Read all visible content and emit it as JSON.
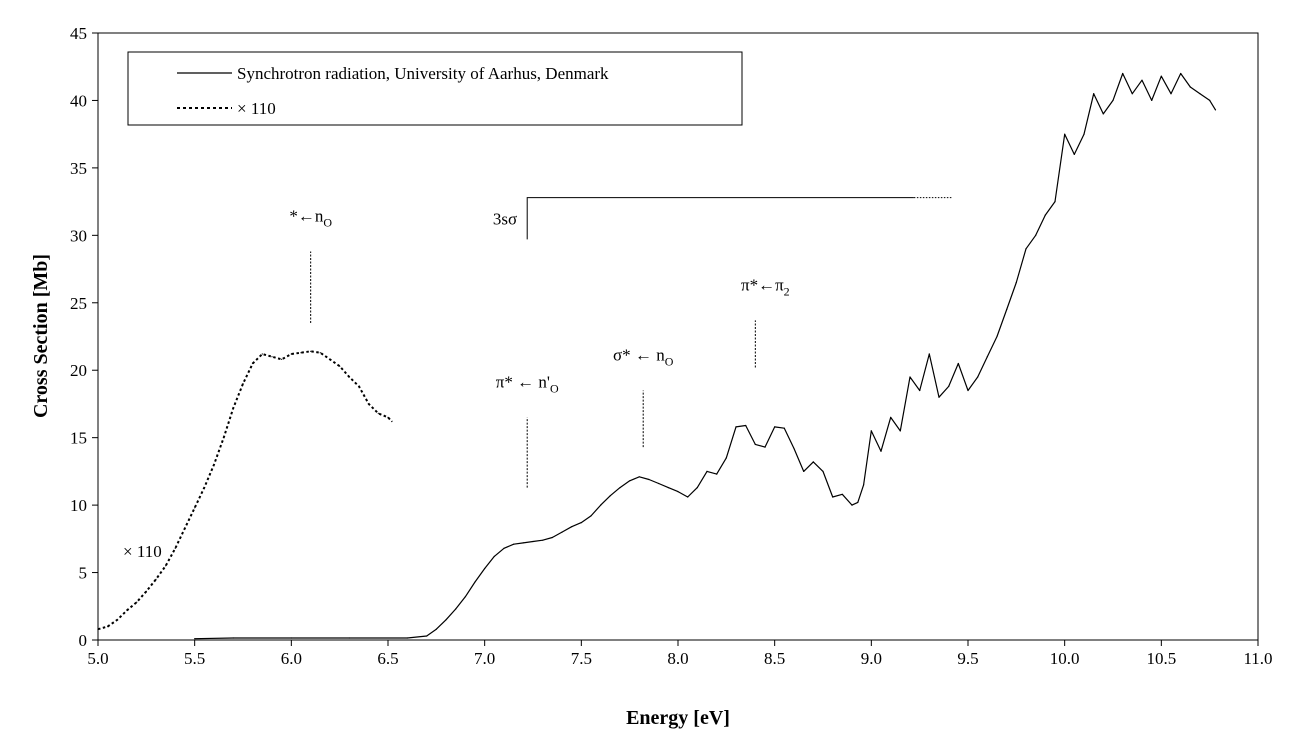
{
  "chart_data": {
    "type": "line",
    "title": "",
    "xlabel": "Energy [eV]",
    "ylabel": "Cross Section [Mb]",
    "xlim": [
      5.0,
      11.0
    ],
    "ylim": [
      0,
      45
    ],
    "x_ticks": [
      5.0,
      5.5,
      6.0,
      6.5,
      7.0,
      7.5,
      8.0,
      8.5,
      9.0,
      9.5,
      10.0,
      10.5,
      11.0
    ],
    "x_tick_labels": [
      "5.0",
      "5.5",
      "6.0",
      "6.5",
      "7.0",
      "7.5",
      "8.0",
      "8.5",
      "9.0",
      "9.5",
      "10.0",
      "10.5",
      "11.0"
    ],
    "y_ticks": [
      0,
      5,
      10,
      15,
      20,
      25,
      30,
      35,
      40,
      45
    ],
    "y_tick_labels": [
      "0",
      "5",
      "10",
      "15",
      "20",
      "25",
      "30",
      "35",
      "40",
      "45"
    ],
    "grid": false,
    "legend": {
      "placement": "top-left",
      "entries": [
        {
          "label": "Synchrotron radiation, University of Aarhus, Denmark",
          "style": "solid"
        },
        {
          "label": "× 110",
          "style": "dotted"
        }
      ]
    },
    "series": [
      {
        "name": "Synchrotron radiation, University of Aarhus, Denmark",
        "style": "solid",
        "color": "#000000",
        "x": [
          5.5,
          5.7,
          6.0,
          6.3,
          6.6,
          6.7,
          6.75,
          6.8,
          6.85,
          6.9,
          6.95,
          7.0,
          7.05,
          7.1,
          7.15,
          7.2,
          7.25,
          7.3,
          7.35,
          7.4,
          7.45,
          7.5,
          7.55,
          7.6,
          7.65,
          7.7,
          7.75,
          7.8,
          7.85,
          7.9,
          7.95,
          8.0,
          8.05,
          8.1,
          8.15,
          8.2,
          8.25,
          8.3,
          8.35,
          8.4,
          8.45,
          8.5,
          8.55,
          8.6,
          8.65,
          8.7,
          8.75,
          8.8,
          8.85,
          8.9,
          8.93,
          8.96,
          9.0,
          9.05,
          9.1,
          9.15,
          9.2,
          9.25,
          9.3,
          9.35,
          9.4,
          9.45,
          9.5,
          9.55,
          9.6,
          9.65,
          9.7,
          9.75,
          9.8,
          9.85,
          9.9,
          9.95,
          10.0,
          10.05,
          10.1,
          10.15,
          10.2,
          10.25,
          10.3,
          10.35,
          10.4,
          10.45,
          10.5,
          10.55,
          10.6,
          10.65,
          10.7,
          10.75,
          10.78
        ],
        "y": [
          0.1,
          0.15,
          0.15,
          0.15,
          0.15,
          0.3,
          0.8,
          1.5,
          2.3,
          3.2,
          4.3,
          5.3,
          6.2,
          6.8,
          7.1,
          7.2,
          7.3,
          7.4,
          7.6,
          8.0,
          8.4,
          8.7,
          9.2,
          10.0,
          10.7,
          11.3,
          11.8,
          12.1,
          11.9,
          11.6,
          11.3,
          11.0,
          10.6,
          11.3,
          12.5,
          12.3,
          13.5,
          15.8,
          15.9,
          14.5,
          14.3,
          15.8,
          15.7,
          14.2,
          12.5,
          13.2,
          12.5,
          10.6,
          10.8,
          10.0,
          10.2,
          11.5,
          15.5,
          14.0,
          16.5,
          15.5,
          19.5,
          18.5,
          21.2,
          18.0,
          18.8,
          20.5,
          18.5,
          19.5,
          21.0,
          22.5,
          24.5,
          26.5,
          29.0,
          30.0,
          31.5,
          32.5,
          37.5,
          36.0,
          37.5,
          40.5,
          39.0,
          40.0,
          42.0,
          40.5,
          41.5,
          40.0,
          41.8,
          40.5,
          42.0,
          41.0,
          40.5,
          40.0,
          39.3
        ]
      },
      {
        "name": "× 110",
        "style": "dotted",
        "color": "#000000",
        "x": [
          5.0,
          5.05,
          5.1,
          5.15,
          5.2,
          5.25,
          5.3,
          5.35,
          5.4,
          5.45,
          5.5,
          5.55,
          5.6,
          5.65,
          5.7,
          5.75,
          5.8,
          5.85,
          5.9,
          5.95,
          6.0,
          6.05,
          6.1,
          6.15,
          6.2,
          6.25,
          6.3,
          6.35,
          6.4,
          6.45,
          6.5,
          6.52
        ],
        "y": [
          0.8,
          1.0,
          1.5,
          2.2,
          2.8,
          3.6,
          4.5,
          5.5,
          6.8,
          8.3,
          9.8,
          11.3,
          13.0,
          15.0,
          17.2,
          19.0,
          20.5,
          21.2,
          21.0,
          20.8,
          21.2,
          21.3,
          21.4,
          21.3,
          20.8,
          20.3,
          19.5,
          18.8,
          17.5,
          16.8,
          16.5,
          16.2
        ]
      }
    ],
    "annotations": [
      {
        "id": "no",
        "text": "*",
        "arrow": "←",
        "base": "n",
        "sub": "O",
        "x": 6.1,
        "line_y": [
          23.5,
          28.8
        ]
      },
      {
        "id": "npo",
        "text": "π*",
        "arrow": "←",
        "base": "n'",
        "sub": "O",
        "x": 7.22,
        "line_y": [
          11.3,
          16.5
        ]
      },
      {
        "id": "sno",
        "text": "σ*",
        "arrow": "←",
        "base": "n",
        "sub": "O",
        "x": 7.82,
        "line_y": [
          14.3,
          18.5
        ]
      },
      {
        "id": "pp2",
        "text": "π*",
        "arrow": "←",
        "base": "π",
        "sub": "2",
        "x": 8.4,
        "line_y": [
          20.2,
          23.7
        ]
      },
      {
        "id": "ryd",
        "text": "3sσ",
        "x_start": 7.22,
        "x_end": 9.22,
        "x_dotted_end": 9.42,
        "y_top": 32.8,
        "y_bottom": 29.7
      }
    ],
    "left_label": "× 110"
  }
}
